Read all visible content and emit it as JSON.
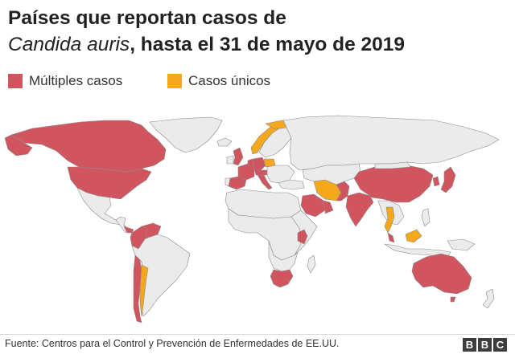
{
  "title": {
    "line1": "Países que reportan casos de",
    "species": "Candida auris",
    "line2_rest": ", hasta el 31 de mayo de 2019"
  },
  "legend": [
    {
      "label": "Múltiples casos",
      "color": "#d1555f"
    },
    {
      "label": "Casos únicos",
      "color": "#f5a81c"
    }
  ],
  "colors": {
    "multiple": "#d1555f",
    "single": "#f5a81c",
    "none": "#ebebeb",
    "border": "#8a8a8a"
  },
  "map_data": {
    "multiple_cases": [
      "Canadá",
      "Estados Unidos",
      "Panamá",
      "Colombia",
      "Venezuela",
      "Chile",
      "Reino Unido",
      "Francia",
      "España",
      "Alemania",
      "Países Bajos",
      "Bélgica",
      "Suiza",
      "Austria",
      "Italia",
      "Irán",
      "Kuwait",
      "Omán",
      "Emiratos Árabes Unidos",
      "Arabia Saudí",
      "Israel",
      "India",
      "Pakistán",
      "China",
      "Japón",
      "Corea del Sur",
      "Malasia",
      "Singapur",
      "Kenia",
      "Sudáfrica",
      "Australia"
    ],
    "single_cases": [
      "Noruega",
      "Rusia",
      "Polonia",
      "Tailandia",
      "Malasia (Borneo)",
      "Argentina"
    ]
  },
  "footer": {
    "source": "Fuente: Centros para el Control y Prevención de Enfermedades de EE.UU.",
    "brand": [
      "B",
      "B",
      "C"
    ]
  }
}
